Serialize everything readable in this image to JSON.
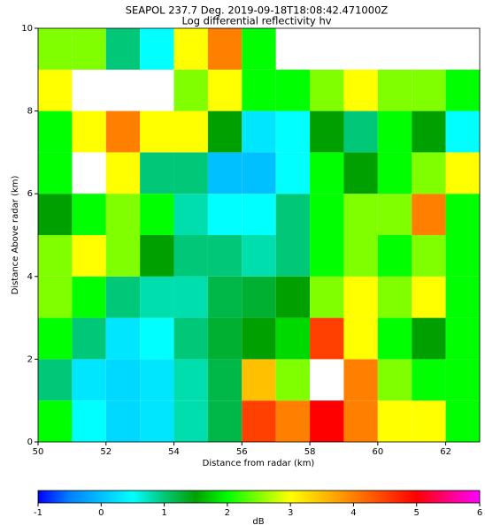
{
  "chart_data": {
    "type": "heatmap",
    "title": "SEAPOL 237.7 Deg. 2019-09-18T18:08:42.471000Z",
    "subtitle": "Log differential reflectivity hv",
    "x_label": "Distance from radar (km)",
    "y_label": "Distance Above radar  (km)",
    "colorbar_label": "dB",
    "xlim": [
      50,
      63
    ],
    "xticks": [
      50,
      52,
      54,
      56,
      58,
      60,
      62
    ],
    "ylim": [
      0,
      10
    ],
    "yticks": [
      0,
      2,
      4,
      6,
      8,
      10
    ],
    "clim": [
      -1,
      6
    ],
    "cticks": [
      -1,
      0,
      1,
      2,
      3,
      4,
      5,
      6
    ],
    "colors": [
      "#0000ff",
      "#0080ff",
      "#00c0ff",
      "#00ffff",
      "#00c878",
      "#00a000",
      "#00ff00",
      "#80ff00",
      "#ffff00",
      "#ffc000",
      "#ff8000",
      "#ff4000",
      "#ff0000",
      "#ff0080",
      "#ff00ff"
    ],
    "x_edges": [
      50,
      51,
      52,
      53,
      54,
      55,
      56,
      57,
      58,
      59,
      60,
      61,
      62,
      63
    ],
    "y_edges": [
      0,
      1,
      2,
      3,
      4,
      5,
      6,
      7,
      8,
      9,
      10
    ],
    "z": [
      [
        2,
        0.5,
        0.2,
        0.3,
        0.8,
        1.2,
        4.5,
        4,
        5,
        4,
        3,
        3,
        2
      ],
      [
        1,
        0.3,
        0.2,
        0.3,
        0.8,
        1.2,
        3.5,
        2.5,
        null,
        4,
        2.5,
        2,
        2
      ],
      [
        2,
        1,
        0.3,
        0.5,
        1,
        1.3,
        1.5,
        1.8,
        4.5,
        3,
        2,
        1.5,
        2
      ],
      [
        2.5,
        2,
        1,
        0.8,
        0.8,
        1.2,
        1.3,
        1.5,
        2.5,
        3,
        2.5,
        3,
        2
      ],
      [
        2.5,
        3,
        2.5,
        1.5,
        1,
        1,
        0.8,
        1,
        2,
        2.5,
        2,
        2.5,
        2
      ],
      [
        1.5,
        2,
        2.5,
        2,
        0.8,
        0.5,
        0.5,
        1,
        2,
        2.5,
        2.5,
        4,
        2
      ],
      [
        2,
        null,
        3,
        1,
        1,
        0,
        0,
        0.5,
        2,
        1.5,
        2,
        2.5,
        3
      ],
      [
        2,
        3,
        4,
        3,
        3,
        1.5,
        0.3,
        0.5,
        1.5,
        1,
        2,
        1.5,
        0.5
      ],
      [
        3,
        null,
        null,
        null,
        2.5,
        3,
        2,
        2,
        2.5,
        3,
        2.5,
        2.5,
        2
      ],
      [
        2.5,
        2.5,
        1,
        0.5,
        3,
        4,
        2,
        null,
        null,
        null,
        null,
        null,
        null
      ]
    ]
  }
}
